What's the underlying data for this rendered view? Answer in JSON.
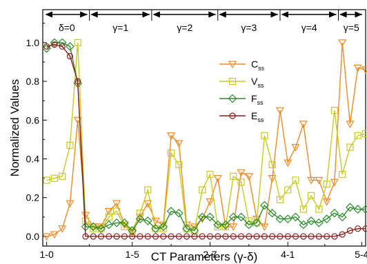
{
  "chart_data": {
    "type": "line",
    "xlabel": "CT Parameters (γ-δ)",
    "ylabel": "Normalized Values",
    "ylim": [
      -0.05,
      1.17
    ],
    "yticks": [
      0.0,
      0.2,
      0.4,
      0.6,
      0.8,
      1.0
    ],
    "yticklabels": [
      "0.0",
      "0.2",
      "0.4",
      "0.6",
      "0.8",
      "1.0"
    ],
    "xlim": [
      0.5,
      42
    ],
    "xticks": [
      {
        "x": 1,
        "label": "1-0"
      },
      {
        "x": 12,
        "label": "1-5"
      },
      {
        "x": 22,
        "label": "2-7"
      },
      {
        "x": 32,
        "label": "4-1"
      },
      {
        "x": 41.5,
        "label": "5-4"
      }
    ],
    "regions": [
      {
        "label": "δ=0",
        "x0": 0.5,
        "x1": 6.5
      },
      {
        "label": "γ=1",
        "x0": 6.5,
        "x1": 14.5
      },
      {
        "label": "γ=2",
        "x0": 14.5,
        "x1": 23
      },
      {
        "label": "γ=3",
        "x0": 23,
        "x1": 31
      },
      {
        "label": "γ=4",
        "x0": 31,
        "x1": 38.5
      },
      {
        "label": "γ=5",
        "x0": 38.5,
        "x1": 42
      }
    ],
    "legend": {
      "position": "right"
    },
    "series": [
      {
        "name": "C",
        "name_sub": "ss",
        "color": "#f08a24",
        "marker": "triangle-down",
        "x": [
          1,
          2,
          3,
          4,
          5,
          6,
          7,
          8,
          9,
          10,
          11,
          12,
          13,
          14,
          15,
          16,
          17,
          18,
          19,
          20,
          21,
          22,
          23,
          24,
          25,
          26,
          27,
          28,
          29,
          30,
          31,
          32,
          33,
          34,
          35,
          36,
          37,
          38,
          39,
          40,
          41,
          42
        ],
        "y": [
          0.0,
          0.01,
          0.04,
          0.17,
          0.6,
          0.11,
          0.05,
          0.05,
          0.13,
          0.17,
          0.06,
          0.02,
          0.1,
          0.17,
          0.08,
          0.06,
          0.52,
          0.48,
          0.06,
          0.05,
          0.09,
          0.18,
          0.3,
          0.05,
          0.05,
          0.33,
          0.31,
          0.09,
          0.05,
          0.3,
          0.65,
          0.38,
          0.46,
          0.58,
          0.29,
          0.29,
          0.18,
          0.28,
          1.0,
          0.58,
          0.87,
          0.86
        ]
      },
      {
        "name": "V",
        "name_sub": "ss",
        "color": "#c8c820",
        "marker": "square",
        "x": [
          1,
          2,
          3,
          4,
          5,
          6,
          7,
          8,
          9,
          10,
          11,
          12,
          13,
          14,
          15,
          16,
          17,
          18,
          19,
          20,
          21,
          22,
          23,
          24,
          25,
          26,
          27,
          28,
          29,
          30,
          31,
          32,
          33,
          34,
          35,
          36,
          37,
          38,
          39,
          40,
          41,
          42
        ],
        "y": [
          0.29,
          0.3,
          0.31,
          0.47,
          1.0,
          0.08,
          0.04,
          0.04,
          0.1,
          0.13,
          0.05,
          0.03,
          0.12,
          0.24,
          0.04,
          0.04,
          0.43,
          0.37,
          0.04,
          0.03,
          0.24,
          0.32,
          0.05,
          0.05,
          0.31,
          0.28,
          0.08,
          0.07,
          0.52,
          0.37,
          0.19,
          0.24,
          0.29,
          0.14,
          0.21,
          0.14,
          0.27,
          0.65,
          0.32,
          0.46,
          0.52,
          0.53
        ]
      },
      {
        "name": "F",
        "name_sub": "ss",
        "color": "#2a8c2a",
        "marker": "diamond",
        "x": [
          1,
          2,
          3,
          4,
          5,
          6,
          7,
          8,
          9,
          10,
          11,
          12,
          13,
          14,
          15,
          16,
          17,
          18,
          19,
          20,
          21,
          22,
          23,
          24,
          25,
          26,
          27,
          28,
          29,
          30,
          31,
          32,
          33,
          34,
          35,
          36,
          37,
          38,
          39,
          40,
          41,
          42
        ],
        "y": [
          0.97,
          1.0,
          1.0,
          0.98,
          0.79,
          0.05,
          0.05,
          0.04,
          0.06,
          0.07,
          0.07,
          0.03,
          0.09,
          0.08,
          0.04,
          0.05,
          0.13,
          0.12,
          0.04,
          0.03,
          0.1,
          0.1,
          0.06,
          0.06,
          0.1,
          0.1,
          0.06,
          0.07,
          0.16,
          0.12,
          0.09,
          0.09,
          0.1,
          0.06,
          0.08,
          0.07,
          0.09,
          0.12,
          0.1,
          0.15,
          0.14,
          0.14
        ]
      },
      {
        "name": "E",
        "name_sub": "ss",
        "color": "#8b1a1a",
        "marker": "circle",
        "x": [
          1,
          2,
          3,
          4,
          5,
          6,
          7,
          8,
          9,
          10,
          11,
          12,
          13,
          14,
          15,
          16,
          17,
          18,
          19,
          20,
          21,
          22,
          23,
          24,
          25,
          26,
          27,
          28,
          29,
          30,
          31,
          32,
          33,
          34,
          35,
          36,
          37,
          38,
          39,
          40,
          41,
          42
        ],
        "y": [
          0.98,
          0.99,
          0.98,
          0.93,
          0.8,
          0.0,
          0.0,
          0.0,
          0.0,
          0.0,
          0.0,
          0.0,
          0.0,
          0.0,
          0.0,
          0.0,
          0.0,
          0.0,
          0.0,
          0.0,
          0.0,
          0.0,
          0.0,
          0.0,
          0.0,
          0.0,
          0.0,
          0.0,
          0.0,
          0.0,
          0.0,
          0.0,
          0.0,
          0.0,
          0.0,
          0.0,
          0.0,
          0.0,
          0.01,
          0.03,
          0.04,
          0.04
        ]
      }
    ]
  }
}
